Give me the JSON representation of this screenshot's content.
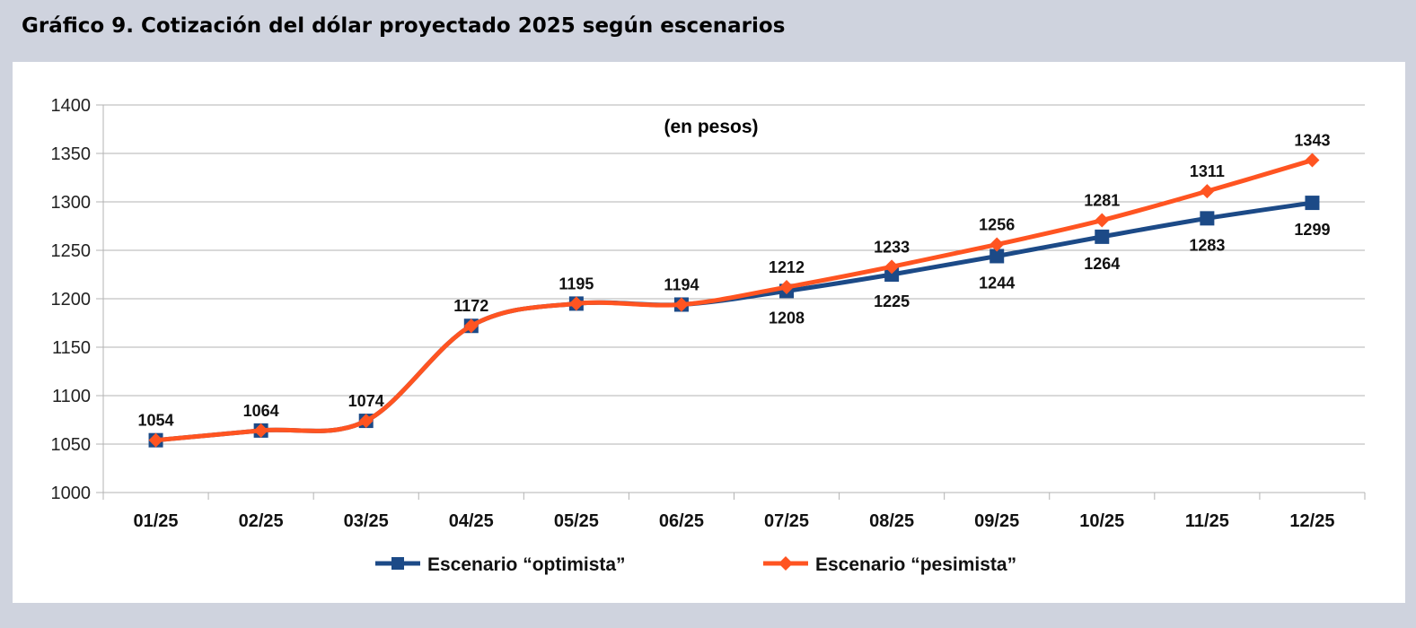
{
  "title": "Gráfico 9. Cotización del dólar proyectado 2025 según escenarios",
  "chart_data": {
    "type": "line",
    "title": "Gráfico 9. Cotización del dólar proyectado 2025 según escenarios",
    "subtitle": "(en pesos)",
    "xlabel": "",
    "ylabel": "",
    "categories": [
      "01/25",
      "02/25",
      "03/25",
      "04/25",
      "05/25",
      "06/25",
      "07/25",
      "08/25",
      "09/25",
      "10/25",
      "11/25",
      "12/25"
    ],
    "ylim": [
      1000,
      1400
    ],
    "yticks": [
      1000,
      1050,
      1100,
      1150,
      1200,
      1250,
      1300,
      1350,
      1400
    ],
    "grid": true,
    "legend": "bottom",
    "series": [
      {
        "name": "Escenario “optimista”",
        "color": "#1c4a87",
        "marker": "square",
        "values": [
          1054,
          1064,
          1074,
          1172,
          1195,
          1194,
          1208,
          1225,
          1244,
          1264,
          1283,
          1299
        ]
      },
      {
        "name": "Escenario “pesimista”",
        "color": "#ff5421",
        "marker": "diamond",
        "values": [
          1054,
          1064,
          1074,
          1172,
          1195,
          1194,
          1212,
          1233,
          1256,
          1281,
          1311,
          1343
        ]
      }
    ]
  }
}
